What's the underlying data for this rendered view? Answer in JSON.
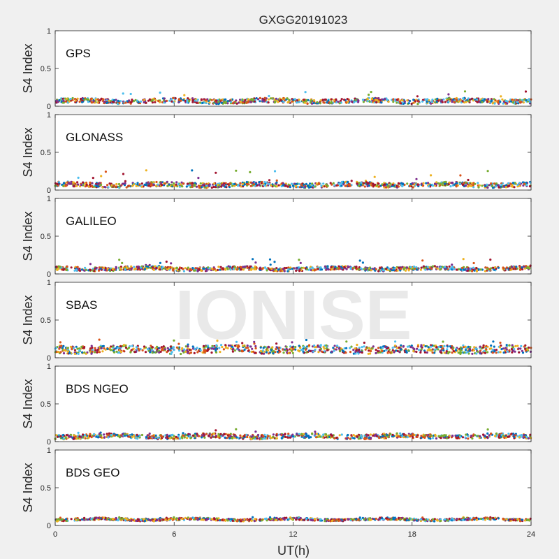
{
  "chart_data": {
    "type": "scatter",
    "title": "GXGG20191023",
    "xlabel": "UT(h)",
    "ylabel": "S4 Index",
    "xlim": [
      0,
      24
    ],
    "ylim": [
      0,
      1
    ],
    "xticks": [
      "0",
      "6",
      "12",
      "18",
      "24"
    ],
    "yticks": [
      "0",
      "0.5",
      "1"
    ],
    "watermark": "IONISE",
    "colors": [
      "#0072BD",
      "#D95319",
      "#EDB120",
      "#7E2F8E",
      "#77AC30",
      "#4DBEEE",
      "#A2142F"
    ],
    "panels": [
      {
        "label": "GPS",
        "baseline": 0.07,
        "spread": 0.03,
        "spike_max": 0.2
      },
      {
        "label": "GLONASS",
        "baseline": 0.07,
        "spread": 0.03,
        "spike_max": 0.27
      },
      {
        "label": "GALILEO",
        "baseline": 0.07,
        "spread": 0.025,
        "spike_max": 0.2
      },
      {
        "label": "SBAS",
        "baseline": 0.11,
        "spread": 0.05,
        "spike_max": 0.24
      },
      {
        "label": "BDS NGEO",
        "baseline": 0.07,
        "spread": 0.03,
        "spike_max": 0.17
      },
      {
        "label": "BDS GEO",
        "baseline": 0.08,
        "spread": 0.015,
        "spike_max": 0.11
      }
    ]
  }
}
